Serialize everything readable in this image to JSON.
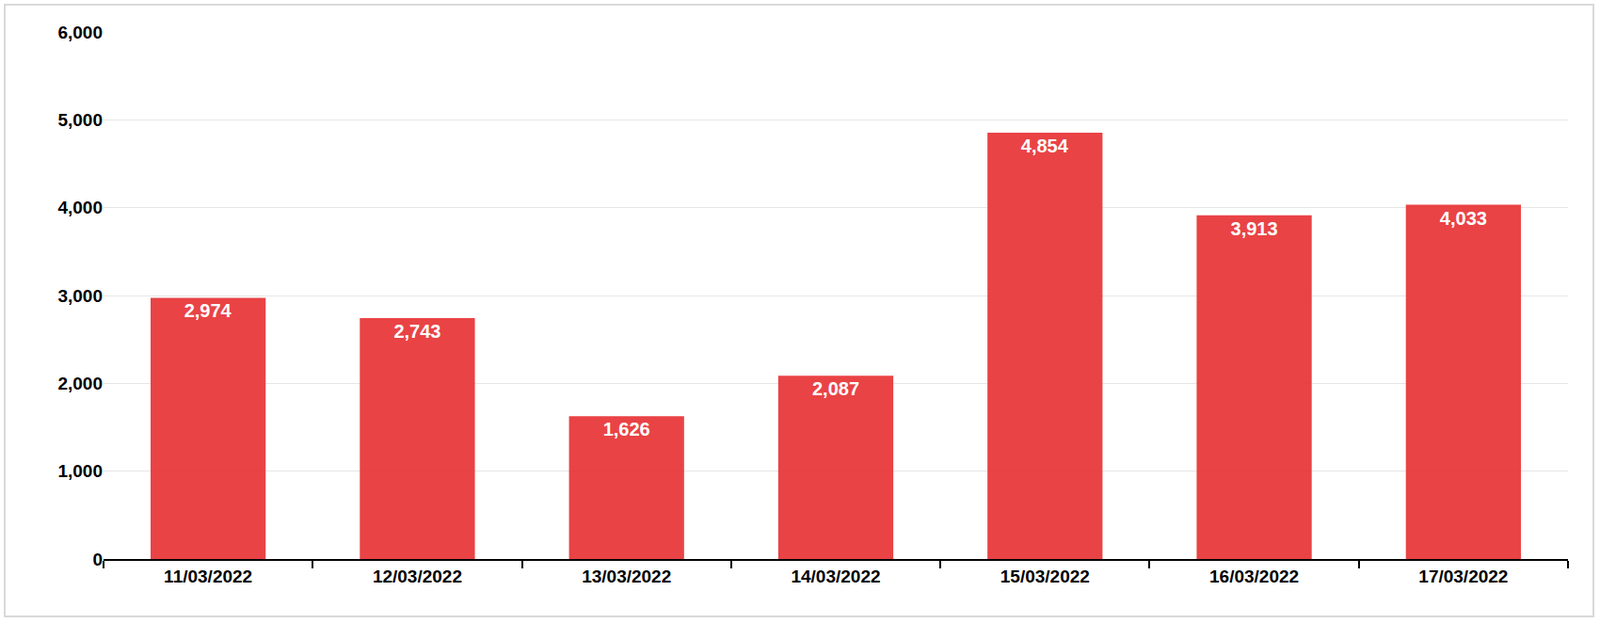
{
  "chart_data": {
    "type": "bar",
    "categories": [
      "11/03/2022",
      "12/03/2022",
      "13/03/2022",
      "14/03/2022",
      "15/03/2022",
      "16/03/2022",
      "17/03/2022"
    ],
    "values": [
      2974,
      2743,
      1626,
      2087,
      4854,
      3913,
      4033
    ],
    "value_labels": [
      "2,974",
      "2,743",
      "1,626",
      "2,087",
      "4,854",
      "3,913",
      "4,033"
    ],
    "color": "#e8393b",
    "ylim": [
      0,
      6000
    ],
    "yticks": [
      0,
      {
        "value": 1000,
        "label": "1,000"
      },
      {
        "value": 2000,
        "label": "2,000"
      },
      {
        "value": 3000,
        "label": "3,000"
      },
      {
        "value": 4000,
        "label": "4,000"
      },
      {
        "value": 5000,
        "label": "5,000"
      },
      {
        "value": 6000,
        "label": "6,000"
      }
    ],
    "grid": true,
    "data_labels": true
  }
}
